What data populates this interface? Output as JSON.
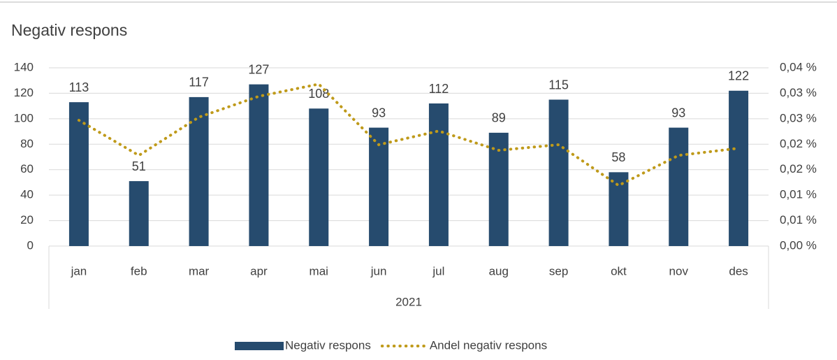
{
  "chart_data": {
    "type": "bar_line",
    "title": "Negativ respons",
    "categories": [
      "jan",
      "feb",
      "mar",
      "apr",
      "mai",
      "jun",
      "jul",
      "aug",
      "sep",
      "okt",
      "nov",
      "des"
    ],
    "group_label": "2021",
    "series": [
      {
        "name": "Negativ respons",
        "type": "bar",
        "color": "#264b6e",
        "values": [
          113,
          51,
          117,
          127,
          108,
          93,
          112,
          89,
          115,
          58,
          93,
          122
        ]
      },
      {
        "name": "Andel negativ respons",
        "type": "line",
        "axis": "y2",
        "color": "#bf9a1a",
        "values": [
          0.0247,
          0.0178,
          0.0253,
          0.0294,
          0.0318,
          0.0199,
          0.0226,
          0.0188,
          0.0199,
          0.0119,
          0.0178,
          0.0192
        ]
      }
    ],
    "ylim": [
      0,
      140
    ],
    "yticks": [
      0,
      20,
      40,
      60,
      80,
      100,
      120,
      140
    ],
    "y2lim": [
      0,
      0.035
    ],
    "y2ticks": [
      {
        "value": 0,
        "label": "0,00 %"
      },
      {
        "value": 0.005,
        "label": "0,01 %"
      },
      {
        "value": 0.01,
        "label": "0,01 %"
      },
      {
        "value": 0.015,
        "label": "0,02 %"
      },
      {
        "value": 0.02,
        "label": "0,02 %"
      },
      {
        "value": 0.025,
        "label": "0,03 %"
      },
      {
        "value": 0.03,
        "label": "0,03 %"
      },
      {
        "value": 0.035,
        "label": "0,04 %"
      }
    ],
    "grid": true,
    "legend": "bottom"
  }
}
